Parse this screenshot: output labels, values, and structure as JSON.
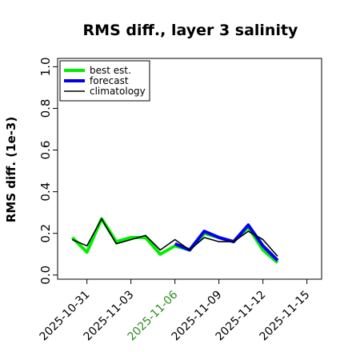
{
  "chart_data": {
    "type": "line",
    "title": "RMS diff., layer 3 salinity",
    "ylabel": "RMS diff. (1e-3)",
    "xlabel": "",
    "ylim": [
      -0.02,
      1.04
    ],
    "xlim": [
      "2025-10-29",
      "2025-11-16"
    ],
    "yticks": [
      "0.0",
      "0.2",
      "0.4",
      "0.6",
      "0.8",
      "1.0"
    ],
    "xticks": [
      {
        "label": "2025-10-31",
        "color": "#000000"
      },
      {
        "label": "2025-11-03",
        "color": "#000000"
      },
      {
        "label": "2025-11-06",
        "color": "#2e8b22"
      },
      {
        "label": "2025-11-09",
        "color": "#000000"
      },
      {
        "label": "2025-11-12",
        "color": "#000000"
      },
      {
        "label": "2025-11-15",
        "color": "#000000"
      }
    ],
    "grid": false,
    "legend_position": "top-left",
    "x": [
      "2025-10-30",
      "2025-10-31",
      "2025-11-01",
      "2025-11-02",
      "2025-11-03",
      "2025-11-04",
      "2025-11-05",
      "2025-11-06",
      "2025-11-07",
      "2025-11-08",
      "2025-11-09",
      "2025-11-10",
      "2025-11-11",
      "2025-11-12",
      "2025-11-13"
    ],
    "series": [
      {
        "name": "best est.",
        "color": "#00ee00",
        "width": 4,
        "values": [
          0.18,
          0.11,
          0.27,
          0.16,
          0.18,
          0.18,
          0.1,
          0.14,
          0.12,
          0.2,
          0.18,
          0.16,
          0.23,
          0.12,
          0.06
        ]
      },
      {
        "name": "forecast",
        "color": "#0000ee",
        "width": 4,
        "values": [
          null,
          null,
          null,
          null,
          null,
          null,
          null,
          0.15,
          0.12,
          0.21,
          0.18,
          0.16,
          0.24,
          0.14,
          0.07
        ]
      },
      {
        "name": "climatology",
        "color": "#000000",
        "width": 1.6,
        "values": [
          0.17,
          0.14,
          0.27,
          0.15,
          0.17,
          0.19,
          0.12,
          0.17,
          0.12,
          0.18,
          0.16,
          0.16,
          0.21,
          0.17,
          0.09
        ]
      }
    ]
  }
}
